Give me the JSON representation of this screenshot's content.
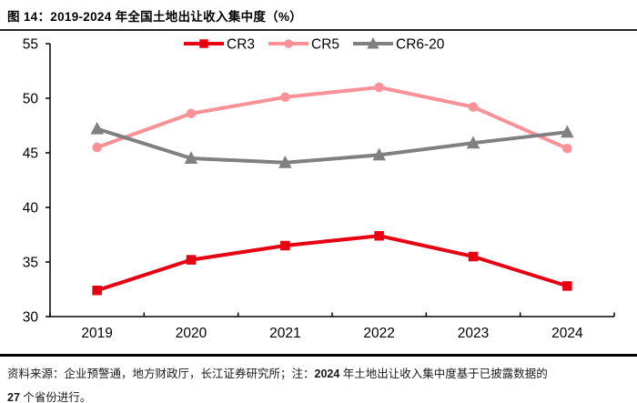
{
  "header": {
    "title": "图 14：2019-2024 年全国土地出让收入集中度（%）"
  },
  "chart_data": {
    "type": "line",
    "title": "图 14：2019-2024 年全国土地出让收入集中度（%）",
    "categories": [
      "2019",
      "2020",
      "2021",
      "2022",
      "2023",
      "2024"
    ],
    "series": [
      {
        "name": "CR3",
        "color": "#e60012",
        "marker": "square",
        "values": [
          32.4,
          35.2,
          36.5,
          37.4,
          35.5,
          32.8
        ]
      },
      {
        "name": "CR5",
        "color": "#fa9196",
        "marker": "circle",
        "values": [
          45.5,
          48.6,
          50.1,
          51.0,
          49.2,
          45.4
        ]
      },
      {
        "name": "CR6-20",
        "color": "#808080",
        "marker": "triangle",
        "values": [
          47.2,
          44.5,
          44.1,
          44.8,
          45.9,
          46.9
        ]
      }
    ],
    "ylim": [
      30,
      55
    ],
    "ytick_step": 5,
    "legend_position": "top",
    "grid": false,
    "axis_color": "#000000",
    "tick_label_color": "#000000"
  },
  "footer": {
    "line1_pre": "资料来源：企业预警通，地方财政厅，长江证券研究所；注：",
    "line1_num": "2024",
    "line1_post": " 年土地出让收入集中度基于已披露数据的",
    "line2_num": "27",
    "line2_post": " 个省份进行。"
  }
}
